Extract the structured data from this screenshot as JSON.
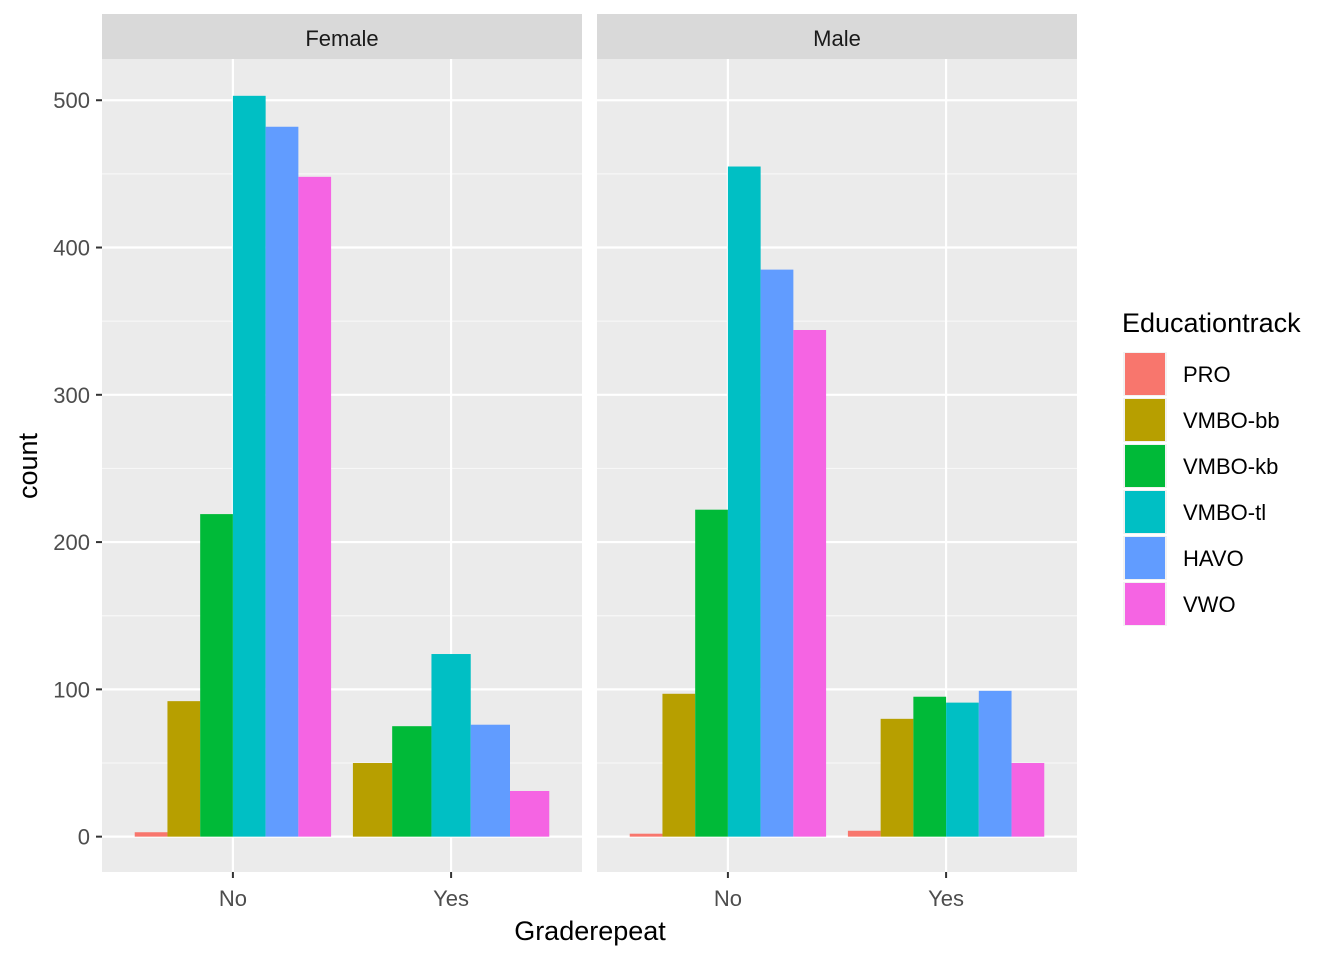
{
  "chart_data": {
    "type": "bar",
    "facets": [
      "Female",
      "Male"
    ],
    "categories": [
      "No",
      "Yes"
    ],
    "xlabel": "Graderepeat",
    "ylabel": "count",
    "ylim": [
      -24,
      528
    ],
    "yticks": [
      0,
      100,
      200,
      300,
      400,
      500
    ],
    "grid": true,
    "legend": {
      "title": "Educationtrack",
      "position": "right",
      "entries": [
        "PRO",
        "VMBO-bb",
        "VMBO-kb",
        "VMBO-tl",
        "HAVO",
        "VWO"
      ]
    },
    "colors": [
      "#F8766D",
      "#B79F00",
      "#00BA38",
      "#00BFC4",
      "#619CFF",
      "#F564E3"
    ],
    "series": [
      {
        "name": "PRO",
        "values": {
          "Female": [
            3,
            null
          ],
          "Male": [
            2,
            4
          ]
        }
      },
      {
        "name": "VMBO-bb",
        "values": {
          "Female": [
            92,
            50
          ],
          "Male": [
            97,
            80
          ]
        }
      },
      {
        "name": "VMBO-kb",
        "values": {
          "Female": [
            219,
            75
          ],
          "Male": [
            222,
            95
          ]
        }
      },
      {
        "name": "VMBO-tl",
        "values": {
          "Female": [
            503,
            124
          ],
          "Male": [
            455,
            91
          ]
        }
      },
      {
        "name": "HAVO",
        "values": {
          "Female": [
            482,
            76
          ],
          "Male": [
            385,
            99
          ]
        }
      },
      {
        "name": "VWO",
        "values": {
          "Female": [
            448,
            31
          ],
          "Male": [
            344,
            50
          ]
        }
      }
    ]
  }
}
